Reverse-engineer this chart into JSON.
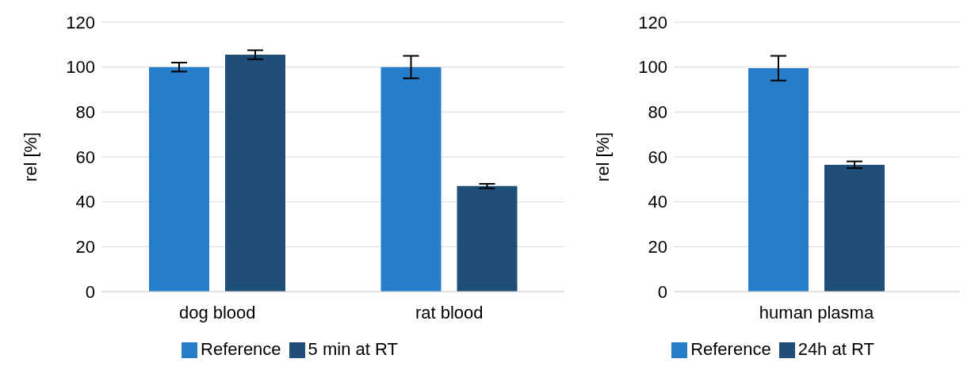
{
  "chart_data": [
    {
      "type": "bar",
      "ylabel": "rel [%]",
      "categories": [
        "dog blood",
        "rat blood"
      ],
      "series": [
        {
          "name": "Reference",
          "color": "#277dc8",
          "values": [
            100,
            100
          ],
          "errors": [
            2,
            5
          ]
        },
        {
          "name": "5 min at RT",
          "color": "#1f4e78",
          "values": [
            105.5,
            47
          ],
          "errors": [
            2,
            1
          ]
        }
      ],
      "ylim": [
        0,
        120
      ],
      "yticks": [
        0,
        20,
        40,
        60,
        80,
        100,
        120
      ],
      "grid": "y",
      "legend": "bottom"
    },
    {
      "type": "bar",
      "ylabel": "rel [%]",
      "categories": [
        "human plasma"
      ],
      "series": [
        {
          "name": "Reference",
          "color": "#277dc8",
          "values": [
            99.5
          ],
          "errors": [
            5.5
          ]
        },
        {
          "name": "24h at RT",
          "color": "#1f4e78",
          "values": [
            56.5
          ],
          "errors": [
            1.5
          ]
        }
      ],
      "ylim": [
        0,
        120
      ],
      "yticks": [
        0,
        20,
        40,
        60,
        80,
        100,
        120
      ],
      "grid": "y",
      "legend": "bottom"
    }
  ]
}
